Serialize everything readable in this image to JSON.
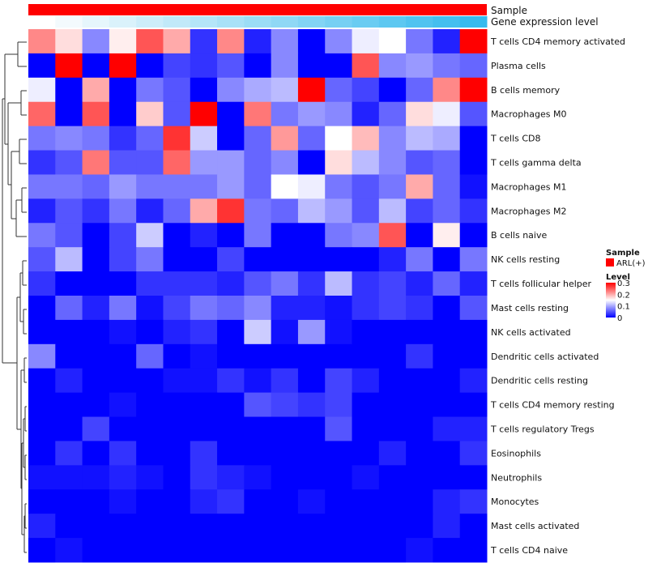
{
  "chart_data": {
    "type": "heatmap",
    "annotation_rows": [
      {
        "label": "Sample",
        "value": "ARL(+)",
        "color": "#ff0000"
      },
      {
        "label": "Gene expression level",
        "colors": [
          "#ffffff",
          "#f3fafd",
          "#e6f6fc",
          "#daf2fb",
          "#cdedfa",
          "#c1e9f9",
          "#b4e5f8",
          "#a8e1f7",
          "#9bddf6",
          "#8fd8f5",
          "#82d4f4",
          "#76d0f3",
          "#69ccf2",
          "#5dc8f1",
          "#50c3f0",
          "#44bfef",
          "#37bbee"
        ]
      }
    ],
    "rows": [
      "T cells CD4 memory activated",
      "Plasma cells",
      "B cells memory",
      "Macrophages M0",
      "T cells CD8",
      "T cells gamma delta",
      "Macrophages M1",
      "Macrophages M2",
      "B cells naive",
      "NK cells resting",
      "T cells follicular helper",
      "Mast cells resting",
      "NK cells activated",
      "Dendritic cells activated",
      "Dendritic cells resting",
      "T cells CD4 memory resting",
      "T cells regulatory  Tregs",
      "Eosinophils",
      "Neutrophils",
      "Monocytes",
      "Mast cells activated",
      "T cells CD4 naive"
    ],
    "values": [
      [
        0.22,
        0.17,
        0.08,
        0.16,
        0.25,
        0.2,
        0.03,
        0.22,
        0.02,
        0.08,
        0.0,
        0.08,
        0.14,
        0.15,
        0.07,
        0.02,
        0.3
      ],
      [
        0.0,
        0.3,
        0.0,
        0.3,
        0.0,
        0.04,
        0.03,
        0.05,
        0.0,
        0.08,
        0.0,
        0.0,
        0.25,
        0.08,
        0.09,
        0.07,
        0.06
      ],
      [
        0.14,
        0.0,
        0.2,
        0.0,
        0.07,
        0.05,
        0.0,
        0.08,
        0.1,
        0.11,
        0.3,
        0.06,
        0.04,
        0.0,
        0.06,
        0.22,
        0.3
      ],
      [
        0.24,
        0.0,
        0.25,
        0.0,
        0.18,
        0.05,
        0.3,
        0.0,
        0.23,
        0.07,
        0.09,
        0.08,
        0.02,
        0.06,
        0.17,
        0.14,
        0.05
      ],
      [
        0.07,
        0.08,
        0.07,
        0.03,
        0.06,
        0.27,
        0.12,
        0.0,
        0.06,
        0.21,
        0.06,
        0.15,
        0.19,
        0.08,
        0.11,
        0.1,
        0.0
      ],
      [
        0.03,
        0.05,
        0.23,
        0.05,
        0.05,
        0.24,
        0.09,
        0.09,
        0.06,
        0.08,
        0.0,
        0.17,
        0.11,
        0.08,
        0.05,
        0.06,
        0.0
      ],
      [
        0.07,
        0.07,
        0.06,
        0.09,
        0.07,
        0.07,
        0.07,
        0.09,
        0.06,
        0.15,
        0.14,
        0.07,
        0.05,
        0.07,
        0.2,
        0.06,
        0.01
      ],
      [
        0.02,
        0.05,
        0.03,
        0.07,
        0.02,
        0.06,
        0.2,
        0.27,
        0.07,
        0.06,
        0.11,
        0.09,
        0.05,
        0.11,
        0.04,
        0.06,
        0.03
      ],
      [
        0.07,
        0.05,
        0.0,
        0.04,
        0.12,
        0.0,
        0.02,
        0.0,
        0.07,
        0.0,
        0.0,
        0.07,
        0.08,
        0.25,
        0.0,
        0.16,
        0.0
      ],
      [
        0.05,
        0.11,
        0.0,
        0.04,
        0.07,
        0.0,
        0.0,
        0.04,
        0.0,
        0.0,
        0.0,
        0.0,
        0.0,
        0.02,
        0.07,
        0.0,
        0.07
      ],
      [
        0.03,
        0.0,
        0.0,
        0.0,
        0.03,
        0.03,
        0.03,
        0.02,
        0.05,
        0.07,
        0.03,
        0.11,
        0.03,
        0.04,
        0.02,
        0.06,
        0.02
      ],
      [
        0.0,
        0.06,
        0.02,
        0.07,
        0.01,
        0.04,
        0.07,
        0.06,
        0.08,
        0.02,
        0.02,
        0.01,
        0.03,
        0.04,
        0.03,
        0.0,
        0.05
      ],
      [
        0.0,
        0.0,
        0.0,
        0.01,
        0.0,
        0.02,
        0.03,
        0.0,
        0.12,
        0.01,
        0.09,
        0.01,
        0.0,
        0.0,
        0.0,
        0.0,
        0.0
      ],
      [
        0.08,
        0.0,
        0.0,
        0.0,
        0.06,
        0.0,
        0.01,
        0.0,
        0.0,
        0.0,
        0.0,
        0.0,
        0.0,
        0.0,
        0.03,
        0.0,
        0.0
      ],
      [
        0.0,
        0.02,
        0.0,
        0.0,
        0.0,
        0.01,
        0.01,
        0.03,
        0.01,
        0.03,
        0.0,
        0.04,
        0.02,
        0.0,
        0.0,
        0.0,
        0.02
      ],
      [
        0.0,
        0.0,
        0.0,
        0.01,
        0.0,
        0.0,
        0.0,
        0.0,
        0.05,
        0.04,
        0.03,
        0.04,
        0.0,
        0.0,
        0.0,
        0.0,
        0.0
      ],
      [
        0.0,
        0.0,
        0.04,
        0.0,
        0.0,
        0.0,
        0.0,
        0.0,
        0.0,
        0.0,
        0.0,
        0.05,
        0.0,
        0.0,
        0.0,
        0.02,
        0.02
      ],
      [
        0.0,
        0.03,
        0.0,
        0.03,
        0.0,
        0.0,
        0.03,
        0.0,
        0.0,
        0.0,
        0.0,
        0.0,
        0.0,
        0.02,
        0.0,
        0.0,
        0.03
      ],
      [
        0.01,
        0.01,
        0.01,
        0.02,
        0.01,
        0.0,
        0.03,
        0.02,
        0.01,
        0.0,
        0.0,
        0.0,
        0.01,
        0.0,
        0.0,
        0.0,
        0.0
      ],
      [
        0.0,
        0.0,
        0.0,
        0.01,
        0.0,
        0.0,
        0.02,
        0.03,
        0.0,
        0.0,
        0.01,
        0.0,
        0.0,
        0.0,
        0.0,
        0.02,
        0.03
      ],
      [
        0.02,
        0.0,
        0.0,
        0.0,
        0.0,
        0.0,
        0.0,
        0.0,
        0.0,
        0.0,
        0.0,
        0.0,
        0.0,
        0.0,
        0.0,
        0.02,
        0.0
      ],
      [
        0.0,
        0.01,
        0.0,
        0.0,
        0.0,
        0.0,
        0.0,
        0.0,
        0.0,
        0.0,
        0.0,
        0.0,
        0.0,
        0.0,
        0.01,
        0.0,
        0.0
      ]
    ],
    "color_scale": {
      "min": 0,
      "max": 0.3,
      "low": "#0000ff",
      "mid": "#ffffff",
      "high": "#ff0000"
    },
    "legend": {
      "sample_title": "Sample",
      "sample_label": "ARL(+)",
      "sample_color": "#ff0000",
      "level_title": "Level",
      "ticks": [
        0.3,
        0.2,
        0.1,
        0
      ]
    }
  }
}
